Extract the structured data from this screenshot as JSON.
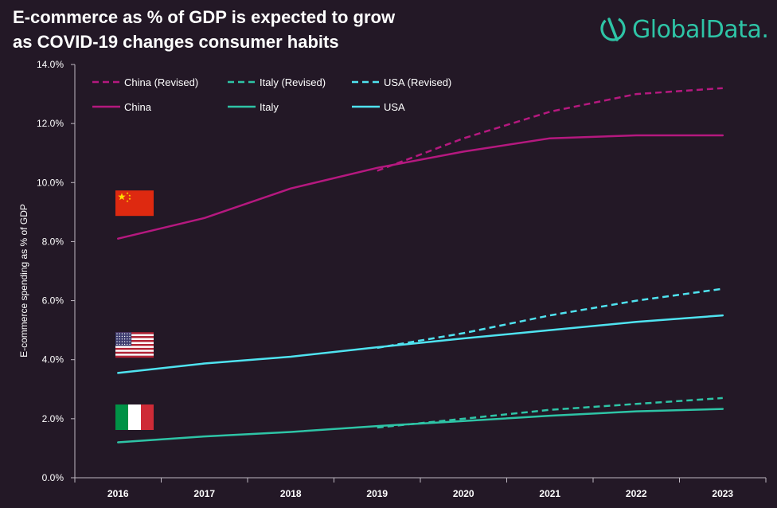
{
  "header": {
    "title_line1": "E-commerce as % of GDP is expected to grow",
    "title_line2": "as COVID-19 changes consumer habits"
  },
  "logo": {
    "text": "GlobalData.",
    "icon": "globaldata-logo-icon",
    "color": "#2ec4a6"
  },
  "chart_data": {
    "type": "line",
    "title": "E-commerce as % of GDP is expected to grow as COVID-19 changes consumer habits",
    "ylabel": "E-commerce spending as % of GDP",
    "xlabel": "",
    "x": [
      "2016",
      "2017",
      "2018",
      "2019",
      "2020",
      "2021",
      "2022",
      "2023"
    ],
    "ylim": [
      0,
      14
    ],
    "yticks": [
      0,
      2,
      4,
      6,
      8,
      10,
      12,
      14
    ],
    "ytick_labels": [
      "0.0%",
      "2.0%",
      "4.0%",
      "6.0%",
      "8.0%",
      "10.0%",
      "12.0%",
      "14.0%"
    ],
    "grid": false,
    "legend_position": "top-left",
    "series": [
      {
        "name": "China (Revised)",
        "color": "#b5187f",
        "dashed": true,
        "x": [
          "2019",
          "2020",
          "2021",
          "2022",
          "2023"
        ],
        "values": [
          10.4,
          11.5,
          12.4,
          13.0,
          13.2
        ]
      },
      {
        "name": "Italy (Revised)",
        "color": "#2ec4a6",
        "dashed": true,
        "x": [
          "2019",
          "2020",
          "2021",
          "2022",
          "2023"
        ],
        "values": [
          1.7,
          2.0,
          2.3,
          2.5,
          2.7
        ]
      },
      {
        "name": "USA (Revised)",
        "color": "#4fe3f0",
        "dashed": true,
        "x": [
          "2019",
          "2020",
          "2021",
          "2022",
          "2023"
        ],
        "values": [
          4.4,
          4.9,
          5.5,
          6.0,
          6.4
        ]
      },
      {
        "name": "China",
        "color": "#b5187f",
        "dashed": false,
        "x": [
          "2016",
          "2017",
          "2018",
          "2019",
          "2020",
          "2021",
          "2022",
          "2023"
        ],
        "values": [
          8.1,
          8.8,
          9.8,
          10.5,
          11.05,
          11.5,
          11.6,
          11.6
        ]
      },
      {
        "name": "Italy",
        "color": "#2ec4a6",
        "dashed": false,
        "x": [
          "2016",
          "2017",
          "2018",
          "2019",
          "2020",
          "2021",
          "2022",
          "2023"
        ],
        "values": [
          1.2,
          1.4,
          1.55,
          1.75,
          1.92,
          2.1,
          2.25,
          2.33
        ]
      },
      {
        "name": "USA",
        "color": "#4fe3f0",
        "dashed": false,
        "x": [
          "2016",
          "2017",
          "2018",
          "2019",
          "2020",
          "2021",
          "2022",
          "2023"
        ],
        "values": [
          3.55,
          3.87,
          4.1,
          4.42,
          4.72,
          5.0,
          5.28,
          5.5
        ]
      }
    ],
    "flags": [
      {
        "country": "china-flag-icon",
        "value": 9.3
      },
      {
        "country": "usa-flag-icon",
        "value": 4.5
      },
      {
        "country": "italy-flag-icon",
        "value": 2.05
      }
    ]
  }
}
